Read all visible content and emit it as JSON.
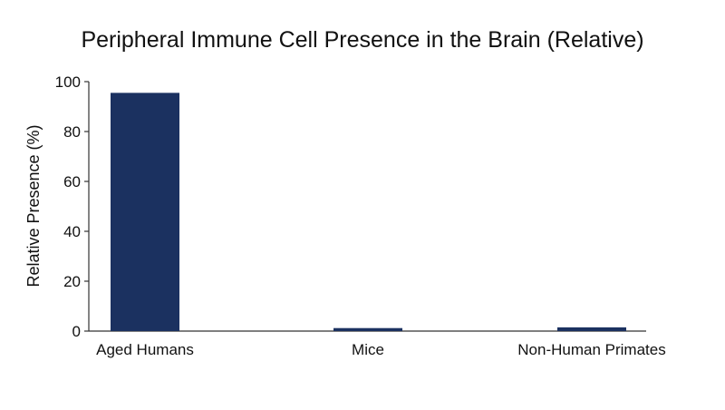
{
  "chart_data": {
    "type": "bar",
    "title": "Peripheral Immune Cell Presence in the Brain (Relative)",
    "xlabel": "",
    "ylabel": "Relative Presence (%)",
    "categories": [
      "Aged Humans",
      "Mice",
      "Non-Human Primates"
    ],
    "values": [
      95.5,
      1.2,
      1.5
    ],
    "ylim": [
      0,
      100
    ],
    "yticks": [
      0,
      20,
      40,
      60,
      80,
      100
    ],
    "grid": false,
    "legend": "none",
    "bar_color": "#1b3160",
    "axis_color": "#333333"
  }
}
